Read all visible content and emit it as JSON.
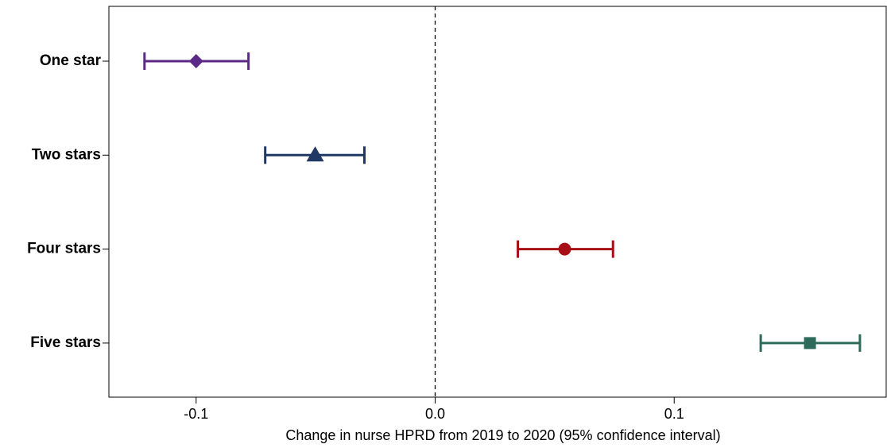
{
  "chart_data": {
    "type": "dot",
    "x_label": "Change in nurse HPRD from 2019 to 2020 (95% confidence interval)",
    "categories": [
      "One star",
      "Two stars",
      "Four stars",
      "Five stars"
    ],
    "values": [
      -0.1,
      -0.0502,
      0.0542,
      0.1568
    ],
    "ci_low": [
      -0.1216,
      -0.0711,
      0.0346,
      0.1362
    ],
    "ci_high": [
      -0.0781,
      -0.0296,
      0.0744,
      0.1777
    ],
    "colors": [
      "#5b2a86",
      "#1f3864",
      "#a50f15",
      "#2e6b5a"
    ],
    "markers": [
      "diamond",
      "triangle",
      "circle",
      "square"
    ],
    "xlim": [
      -0.1365,
      0.1887
    ],
    "xticks": [
      -0.1,
      {
        "value": 0,
        "label": "0.0"
      },
      0.1
    ],
    "refline": 0
  }
}
